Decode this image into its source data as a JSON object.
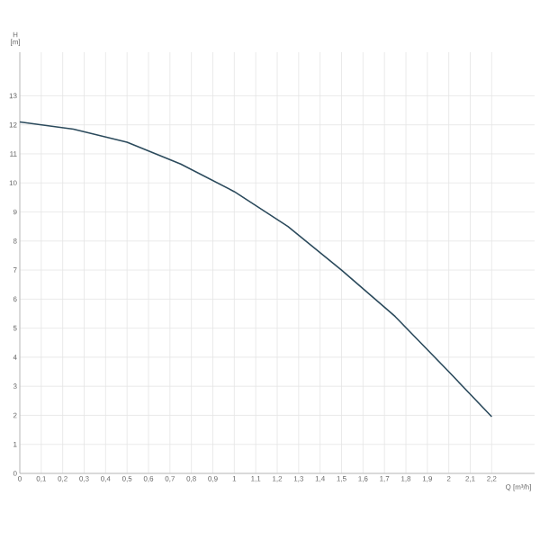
{
  "chart_data": {
    "type": "line",
    "xlabel": "Q [m³/h]",
    "ylabel": "H [m]",
    "x": [
      0,
      0.25,
      0.5,
      0.75,
      1.0,
      1.25,
      1.5,
      1.75,
      2.0,
      2.2
    ],
    "series": [
      {
        "color": "#2b4a5c",
        "values": [
          12.1,
          11.85,
          11.4,
          10.65,
          9.7,
          8.5,
          7.0,
          5.4,
          3.5,
          1.95
        ]
      }
    ],
    "xlim": [
      0,
      2.4
    ],
    "ylim": [
      0,
      14.5
    ],
    "xticks": [
      0,
      {
        "value": 0.1,
        "label": "0,1"
      },
      {
        "value": 0.2,
        "label": "0,2"
      },
      {
        "value": 0.3,
        "label": "0,3"
      },
      {
        "value": 0.4,
        "label": "0,4"
      },
      {
        "value": 0.5,
        "label": "0,5"
      },
      {
        "value": 0.6,
        "label": "0,6"
      },
      {
        "value": 0.7,
        "label": "0,7"
      },
      {
        "value": 0.8,
        "label": "0,8"
      },
      {
        "value": 0.9,
        "label": "0,9"
      },
      1,
      {
        "value": 1.1,
        "label": "1,1"
      },
      {
        "value": 1.2,
        "label": "1,2"
      },
      {
        "value": 1.3,
        "label": "1,3"
      },
      {
        "value": 1.4,
        "label": "1,4"
      },
      {
        "value": 1.5,
        "label": "1,5"
      },
      {
        "value": 1.6,
        "label": "1,6"
      },
      {
        "value": 1.7,
        "label": "1,7"
      },
      {
        "value": 1.8,
        "label": "1,8"
      },
      {
        "value": 1.9,
        "label": "1,9"
      },
      2,
      {
        "value": 2.1,
        "label": "2,1"
      },
      {
        "value": 2.2,
        "label": "2,2"
      }
    ],
    "yticks": [
      0,
      1,
      2,
      3,
      4,
      5,
      6,
      7,
      8,
      9,
      10,
      11,
      12,
      13
    ],
    "grid": true,
    "marker": "none",
    "line_style": "solid"
  }
}
